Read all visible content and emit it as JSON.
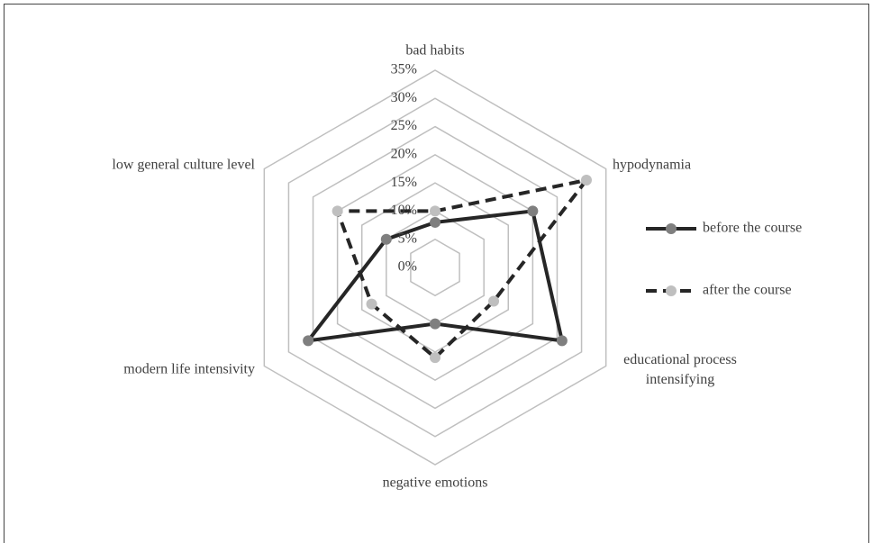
{
  "chart_data": {
    "type": "radar",
    "categories": [
      "bad habits",
      "hypodynamia",
      "educational process intensifying",
      "negative emotions",
      "modern life intensivity",
      "low general culture level"
    ],
    "series": [
      {
        "name": "before the course",
        "color": "#262626",
        "marker_color": "#7f7f7f",
        "dashed": false,
        "values": [
          8,
          20,
          26,
          10,
          26,
          10
        ]
      },
      {
        "name": "after the course",
        "color": "#262626",
        "marker_color": "#bfbfbf",
        "dashed": true,
        "values": [
          10,
          31,
          12,
          16,
          13,
          20
        ]
      }
    ],
    "rlim": [
      0,
      35
    ],
    "rticks": [
      {
        "value": 0,
        "label": "0%"
      },
      {
        "value": 5,
        "label": "5%"
      },
      {
        "value": 10,
        "label": "10%"
      },
      {
        "value": 15,
        "label": "15%"
      },
      {
        "value": 20,
        "label": "20%"
      },
      {
        "value": 25,
        "label": "25%"
      },
      {
        "value": 30,
        "label": "30%"
      },
      {
        "value": 35,
        "label": "35%"
      }
    ],
    "grid": true,
    "legend": "right"
  }
}
